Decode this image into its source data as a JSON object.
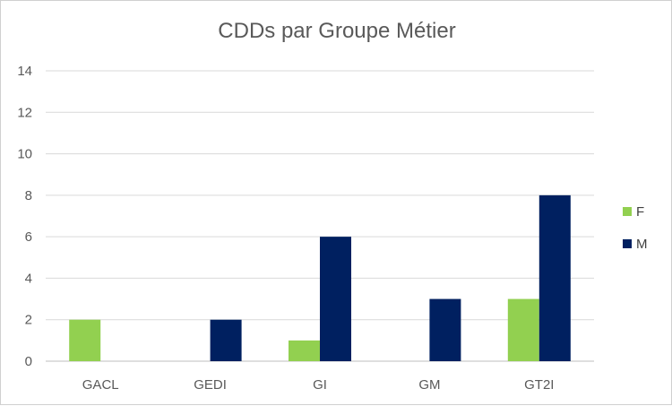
{
  "chart_data": {
    "type": "bar",
    "title": "CDDs par Groupe Métier",
    "xlabel": "",
    "ylabel": "",
    "categories": [
      "GACL",
      "GEDI",
      "GI",
      "GM",
      "GT2I"
    ],
    "series": [
      {
        "name": "F",
        "values": [
          2,
          0,
          1,
          0,
          3
        ],
        "color": "#92d050"
      },
      {
        "name": "M",
        "values": [
          0,
          2,
          6,
          3,
          8
        ],
        "color": "#002060"
      }
    ],
    "ylim": [
      0,
      14
    ],
    "yticks": [
      0,
      2,
      4,
      6,
      8,
      10,
      12,
      14
    ],
    "grid": true,
    "legend_position": "right"
  }
}
